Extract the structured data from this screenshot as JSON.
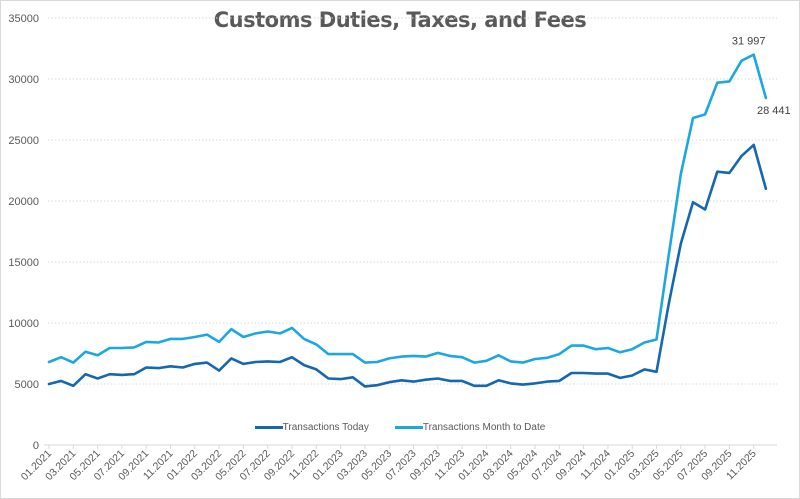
{
  "chart_data": {
    "type": "line",
    "title": "Customs Duties, Taxes, and Fees",
    "xlabel": "",
    "ylabel": "",
    "ylim": [
      0,
      35000
    ],
    "yticks": [
      0,
      5000,
      10000,
      15000,
      20000,
      25000,
      30000,
      35000
    ],
    "grid": true,
    "legend_position": "bottom",
    "x": [
      "01.2021",
      "02.2021",
      "03.2021",
      "04.2021",
      "05.2021",
      "06.2021",
      "07.2021",
      "08.2021",
      "09.2021",
      "10.2021",
      "11.2021",
      "12.2021",
      "01.2022",
      "02.2022",
      "03.2022",
      "04.2022",
      "05.2022",
      "06.2022",
      "07.2022",
      "08.2022",
      "09.2022",
      "10.2022",
      "11.2022",
      "12.2022",
      "01.2023",
      "02.2023",
      "03.2023",
      "04.2023",
      "05.2023",
      "06.2023",
      "07.2023",
      "08.2023",
      "09.2023",
      "10.2023",
      "11.2023",
      "12.2023",
      "01.2024",
      "02.2024",
      "03.2024",
      "04.2024",
      "05.2024",
      "06.2024",
      "07.2024",
      "08.2024",
      "09.2024",
      "10.2024",
      "11.2024",
      "12.2024",
      "01.2025",
      "02.2025",
      "03.2025",
      "04.2025",
      "05.2025",
      "06.2025",
      "07.2025",
      "08.2025",
      "09.2025",
      "10.2025",
      "11.2025",
      "12.2025"
    ],
    "xtick_labels": [
      "01.2021",
      "03.2021",
      "05.2021",
      "07.2021",
      "09.2021",
      "11.2021",
      "01.2022",
      "03.2022",
      "05.2022",
      "07.2022",
      "09.2022",
      "11.2022",
      "01.2023",
      "03.2023",
      "05.2023",
      "07.2023",
      "09.2023",
      "11.2023",
      "01.2024",
      "03.2024",
      "05.2024",
      "07.2024",
      "09.2024",
      "11.2024",
      "01.2025",
      "03.2025",
      "05.2025",
      "07.2025",
      "09.2025",
      "11.2025"
    ],
    "series": [
      {
        "name": "Transactions Today",
        "color": "#1467b0",
        "values": [
          5000,
          5250,
          4850,
          5800,
          5450,
          5800,
          5750,
          5800,
          6350,
          6300,
          6450,
          6350,
          6650,
          6750,
          6100,
          7100,
          6650,
          6800,
          6850,
          6800,
          7200,
          6550,
          6200,
          5450,
          5400,
          5550,
          4800,
          4900,
          5150,
          5300,
          5200,
          5350,
          5450,
          5250,
          5250,
          4850,
          4850,
          5300,
          5050,
          4950,
          5050,
          5200,
          5250,
          5900,
          5900,
          5850,
          5850,
          5500,
          5700,
          6200,
          6000,
          11500,
          16500,
          19900,
          19300,
          22400,
          22300,
          23700,
          24600,
          21000
        ]
      },
      {
        "name": "Transactions Month to Date",
        "color": "#1da7e0",
        "values": [
          6800,
          7200,
          6750,
          7650,
          7350,
          7950,
          7950,
          8000,
          8450,
          8400,
          8700,
          8700,
          8850,
          9050,
          8450,
          9500,
          8850,
          9150,
          9300,
          9150,
          9600,
          8700,
          8250,
          7450,
          7450,
          7450,
          6750,
          6800,
          7100,
          7250,
          7300,
          7250,
          7550,
          7300,
          7200,
          6750,
          6900,
          7350,
          6850,
          6750,
          7050,
          7150,
          7450,
          8150,
          8150,
          7850,
          7950,
          7600,
          7850,
          8400,
          8650,
          15500,
          22200,
          26800,
          27100,
          29700,
          29800,
          31500,
          31997,
          28441
        ]
      }
    ],
    "annotations": [
      {
        "series": "Transactions Month to Date",
        "x": "11.2025",
        "text": "31 997"
      },
      {
        "series": "Transactions Month to Date",
        "x": "12.2025",
        "text": "28 441"
      }
    ]
  }
}
